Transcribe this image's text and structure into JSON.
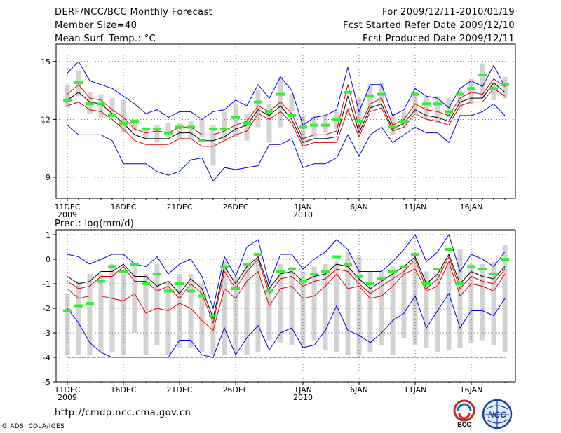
{
  "header": {
    "title": "DERF/NCC/BCC Monthly Forecast",
    "member_size": "Member Size=40",
    "variable": "Mean Surf. Temp.: °C",
    "period": "For 2009/12/11-2010/01/19",
    "fcst_started": "Fcst Started Refer Date 2009/12/10",
    "fcst_produced": "Fcst Produced Date 2009/12/11"
  },
  "footer": {
    "url": "http://cmdp.ncc.cma.gov.cn",
    "grads": "GrADS: COLA/IGES",
    "logo_bcc": "BCC",
    "logo_ncc": "NCC"
  },
  "colors": {
    "box": "#d3d3d3",
    "ensemble_mean": "#000000",
    "quartile": "#dd0000",
    "range": "#0000dd",
    "observation": "#33ee33",
    "floor": "#3333ff"
  },
  "chart_data": [
    {
      "type": "line",
      "title": "",
      "ylabel": "Mean Surf. Temp.: °C",
      "ylim": [
        8.2,
        15.9
      ],
      "yticks": [
        9,
        12,
        15
      ],
      "grid": "dotted",
      "x": [
        1,
        2,
        3,
        4,
        5,
        6,
        7,
        8,
        9,
        10,
        11,
        12,
        13,
        14,
        15,
        16,
        17,
        18,
        19,
        20,
        21,
        22,
        23,
        24,
        25,
        26,
        27,
        28,
        29,
        30,
        31,
        32,
        33,
        34,
        35,
        36,
        37,
        38,
        39,
        40
      ],
      "xticks": [
        {
          "day": 1,
          "label": "11DEC",
          "sub": "2009"
        },
        {
          "day": 6,
          "label": "16DEC",
          "sub": ""
        },
        {
          "day": 11,
          "label": "21DEC",
          "sub": ""
        },
        {
          "day": 16,
          "label": "26DEC",
          "sub": ""
        },
        {
          "day": 22,
          "label": "1JAN",
          "sub": "2010"
        },
        {
          "day": 27,
          "label": "6JAN",
          "sub": ""
        },
        {
          "day": 32,
          "label": "11JAN",
          "sub": ""
        },
        {
          "day": 37,
          "label": "16JAN",
          "sub": ""
        }
      ],
      "series": [
        {
          "name": "box_low",
          "values": [
            12.6,
            13.2,
            12.3,
            12.1,
            12.2,
            11.3,
            11.4,
            11.0,
            10.8,
            11.1,
            11.0,
            11.0,
            11.1,
            9.6,
            10.9,
            11.1,
            10.9,
            11.6,
            10.8,
            11.6,
            12.4,
            10.6,
            11.1,
            11.3,
            11.5,
            12.2,
            11.4,
            12.5,
            12.9,
            11.2,
            11.6,
            12.3,
            12.0,
            11.8,
            12.1,
            12.5,
            12.8,
            13.1,
            13.0,
            13.1
          ]
        },
        {
          "name": "box_high",
          "values": [
            13.8,
            14.5,
            13.4,
            13.3,
            13.1,
            13.0,
            12.0,
            11.6,
            11.7,
            11.8,
            11.8,
            11.9,
            12.0,
            11.7,
            12.4,
            12.8,
            12.3,
            13.5,
            12.8,
            14.2,
            13.3,
            12.2,
            12.2,
            12.3,
            12.4,
            12.6,
            13.1,
            13.8,
            13.9,
            12.3,
            12.4,
            13.4,
            13.2,
            13.2,
            13.1,
            13.5,
            14.1,
            14.9,
            13.9,
            14.2
          ]
        },
        {
          "name": "ensemble_mean",
          "values": [
            13.0,
            13.4,
            12.9,
            12.8,
            12.3,
            11.8,
            11.2,
            11.0,
            11.0,
            11.0,
            11.3,
            11.3,
            10.9,
            10.9,
            11.1,
            11.5,
            11.7,
            12.5,
            12.2,
            12.7,
            12.0,
            10.8,
            11.0,
            11.0,
            11.1,
            13.2,
            11.3,
            12.6,
            12.8,
            11.5,
            11.8,
            12.5,
            12.2,
            12.1,
            11.9,
            12.9,
            13.1,
            13.1,
            13.9,
            13.4
          ]
        },
        {
          "name": "q25",
          "values": [
            12.7,
            12.9,
            12.5,
            12.4,
            12.0,
            11.5,
            10.9,
            10.7,
            10.7,
            10.7,
            11.0,
            11.0,
            10.6,
            10.6,
            10.9,
            11.2,
            11.4,
            12.3,
            12.0,
            12.4,
            11.8,
            10.6,
            10.8,
            10.8,
            10.8,
            12.5,
            11.1,
            12.4,
            12.6,
            11.4,
            11.6,
            12.3,
            12.0,
            11.9,
            11.7,
            12.7,
            12.9,
            12.9,
            13.6,
            13.2
          ]
        },
        {
          "name": "q75",
          "values": [
            13.3,
            13.8,
            13.1,
            13.0,
            12.5,
            12.1,
            11.5,
            11.3,
            11.4,
            11.3,
            11.6,
            11.6,
            11.2,
            11.2,
            11.4,
            11.7,
            11.9,
            12.7,
            12.4,
            12.9,
            12.3,
            11.0,
            11.2,
            11.2,
            11.4,
            13.8,
            11.6,
            12.8,
            13.1,
            11.7,
            12.0,
            12.8,
            12.5,
            12.4,
            12.2,
            13.1,
            13.4,
            13.3,
            14.1,
            13.7
          ]
        },
        {
          "name": "max",
          "values": [
            14.4,
            15.0,
            14.0,
            13.8,
            13.6,
            13.2,
            12.8,
            12.3,
            12.5,
            12.1,
            12.4,
            12.4,
            12.0,
            12.4,
            12.5,
            13.0,
            12.7,
            13.8,
            13.1,
            14.2,
            13.5,
            11.7,
            12.1,
            12.2,
            12.5,
            14.7,
            12.4,
            13.8,
            13.8,
            12.2,
            12.5,
            13.6,
            13.2,
            13.1,
            12.6,
            13.6,
            14.0,
            13.7,
            14.8,
            13.7
          ]
        },
        {
          "name": "min",
          "values": [
            11.7,
            11.2,
            11.2,
            11.2,
            10.9,
            9.7,
            9.7,
            9.7,
            9.3,
            9.1,
            9.3,
            9.9,
            10.0,
            8.8,
            9.5,
            9.4,
            9.5,
            9.6,
            10.7,
            10.7,
            11.0,
            9.5,
            9.7,
            9.7,
            10.0,
            11.2,
            10.1,
            11.2,
            11.6,
            10.8,
            11.2,
            11.6,
            11.3,
            11.3,
            10.8,
            12.2,
            12.2,
            12.4,
            12.8,
            12.2
          ]
        },
        {
          "name": "observation",
          "values": [
            13.0,
            13.9,
            12.8,
            12.8,
            12.2,
            11.8,
            11.9,
            11.5,
            11.5,
            11.3,
            11.6,
            11.6,
            10.9,
            11.5,
            11.5,
            12.1,
            11.8,
            12.9,
            12.4,
            13.3,
            12.2,
            11.6,
            11.7,
            11.7,
            12.0,
            13.4,
            11.9,
            13.2,
            13.3,
            11.6,
            11.9,
            13.3,
            12.8,
            12.8,
            12.4,
            13.3,
            13.6,
            14.3,
            13.6,
            13.8
          ]
        }
      ]
    },
    {
      "type": "line",
      "title": "",
      "ylabel": "Prec.: log(mm/d)",
      "ylim": [
        -5,
        1.2
      ],
      "yticks": [
        1,
        0,
        -1,
        -2,
        -3,
        -4,
        -5
      ],
      "grid": "dotted",
      "floor": -4,
      "x": [
        1,
        2,
        3,
        4,
        5,
        6,
        7,
        8,
        9,
        10,
        11,
        12,
        13,
        14,
        15,
        16,
        17,
        18,
        19,
        20,
        21,
        22,
        23,
        24,
        25,
        26,
        27,
        28,
        29,
        30,
        31,
        32,
        33,
        34,
        35,
        36,
        37,
        38,
        39,
        40
      ],
      "xticks": [
        {
          "day": 1,
          "label": "11DEC",
          "sub": "2009"
        },
        {
          "day": 6,
          "label": "16DEC",
          "sub": ""
        },
        {
          "day": 11,
          "label": "21DEC",
          "sub": ""
        },
        {
          "day": 16,
          "label": "26DEC",
          "sub": ""
        },
        {
          "day": 22,
          "label": "1JAN",
          "sub": "2010"
        },
        {
          "day": 27,
          "label": "6JAN",
          "sub": ""
        },
        {
          "day": 32,
          "label": "11JAN",
          "sub": ""
        },
        {
          "day": 37,
          "label": "16JAN",
          "sub": ""
        }
      ],
      "series": [
        {
          "name": "box_low",
          "values": [
            -3.9,
            -3.9,
            -3.9,
            -3.8,
            -3.8,
            -3.9,
            -3.0,
            -3.9,
            -3.5,
            -3.9,
            -3.6,
            -3.6,
            -3.8,
            -3.9,
            -3.9,
            -3.8,
            -3.9,
            -3.8,
            -3.3,
            -3.4,
            -3.5,
            -3.6,
            -3.3,
            -3.7,
            -3.8,
            -3.9,
            -3.9,
            -3.8,
            -3.5,
            -3.9,
            -3.2,
            -3.5,
            -3.6,
            -3.8,
            -3.7,
            -3.6,
            -3.4,
            -3.3,
            -3.5,
            -3.8
          ]
        },
        {
          "name": "box_high",
          "values": [
            -1.4,
            -0.9,
            -0.6,
            -0.6,
            -0.2,
            -0.6,
            -0.3,
            -0.6,
            -0.2,
            -0.9,
            -0.6,
            -0.6,
            -1.0,
            -2.2,
            -0.1,
            -0.7,
            -0.2,
            0.0,
            -0.8,
            -0.2,
            -0.3,
            -0.5,
            -0.3,
            -0.2,
            -0.1,
            0.3,
            0.1,
            -0.5,
            -0.5,
            -0.3,
            -0.4,
            -0.1,
            -0.5,
            -0.6,
            -0.2,
            0.4,
            -0.2,
            -0.2,
            -0.1,
            0.6
          ]
        },
        {
          "name": "ensemble_mean",
          "values": [
            -0.7,
            -1.0,
            -0.9,
            -0.5,
            -0.5,
            -0.2,
            -0.7,
            -0.7,
            -1.1,
            -0.9,
            -1.4,
            -0.8,
            -1.2,
            -2.4,
            -0.3,
            -1.0,
            -0.3,
            0.1,
            -1.2,
            -0.6,
            -0.5,
            -0.9,
            -0.7,
            -0.6,
            -0.2,
            -0.3,
            -0.8,
            -1.2,
            -0.9,
            -0.6,
            -0.3,
            0.1,
            -1.0,
            -0.6,
            0.2,
            -1.0,
            -0.5,
            -0.7,
            -0.8,
            -0.3
          ]
        },
        {
          "name": "q75",
          "values": [
            -0.9,
            -1.2,
            -1.1,
            -0.7,
            -0.7,
            -0.3,
            -0.9,
            -0.9,
            -1.3,
            -1.1,
            -1.6,
            -1.0,
            -1.4,
            -2.6,
            -0.5,
            -1.2,
            -0.5,
            0.0,
            -1.4,
            -0.8,
            -0.7,
            -1.1,
            -0.9,
            -0.8,
            -0.4,
            -0.5,
            -1.0,
            -1.4,
            -1.1,
            -0.8,
            -0.5,
            0.0,
            -1.2,
            -0.8,
            0.1,
            -1.2,
            -0.7,
            -0.9,
            -1.0,
            -0.4
          ]
        },
        {
          "name": "q25",
          "values": [
            -1.2,
            -1.6,
            -1.5,
            -1.5,
            -1.6,
            -1.7,
            -1.4,
            -2.2,
            -2.0,
            -2.1,
            -1.8,
            -2.0,
            -2.5,
            -2.9,
            -1.2,
            -1.6,
            -0.9,
            -0.5,
            -1.9,
            -1.2,
            -1.1,
            -1.6,
            -1.5,
            -1.1,
            -0.6,
            -1.2,
            -1.1,
            -1.6,
            -1.5,
            -1.1,
            -0.6,
            -0.4,
            -1.3,
            -1.1,
            -0.1,
            -1.5,
            -1.0,
            -1.1,
            -1.3,
            -0.6
          ]
        },
        {
          "name": "min",
          "values": [
            -2.0,
            -2.6,
            -3.4,
            -3.8,
            -4.0,
            -4.0,
            -4.0,
            -4.0,
            -4.0,
            -4.0,
            -3.3,
            -3.3,
            -3.9,
            -4.0,
            -2.8,
            -3.9,
            -3.2,
            -2.7,
            -3.7,
            -3.0,
            -2.8,
            -3.6,
            -3.5,
            -2.9,
            -1.9,
            -2.9,
            -3.1,
            -3.4,
            -3.0,
            -2.5,
            -2.2,
            -1.5,
            -2.8,
            -2.1,
            -1.4,
            -2.8,
            -2.1,
            -2.1,
            -2.3,
            -1.6
          ]
        },
        {
          "name": "max",
          "values": [
            0.2,
            0.1,
            -0.2,
            0.0,
            0.2,
            0.2,
            -0.2,
            -0.3,
            0.1,
            -0.6,
            -0.2,
            0.0,
            -0.7,
            -2.0,
            0.1,
            -0.7,
            0.5,
            0.8,
            -1.0,
            0.2,
            0.2,
            -0.4,
            0.0,
            0.3,
            0.8,
            0.4,
            -0.5,
            -0.5,
            -0.5,
            -0.1,
            0.4,
            1.0,
            -0.1,
            0.3,
            1.0,
            -0.5,
            0.2,
            0.0,
            -0.3,
            0.3
          ]
        },
        {
          "name": "observation",
          "values": [
            -2.1,
            -1.9,
            -1.8,
            -0.9,
            -0.3,
            -0.5,
            -0.2,
            -1.0,
            -0.6,
            -1.3,
            -1.0,
            -1.3,
            -1.5,
            -2.3,
            -0.3,
            -1.2,
            -0.2,
            0.2,
            -1.3,
            -0.5,
            -0.4,
            -0.9,
            -0.6,
            -0.5,
            0.1,
            -0.2,
            -0.7,
            -1.0,
            -0.8,
            -0.5,
            -0.3,
            0.2,
            -1.0,
            -0.4,
            0.4,
            -1.0,
            -0.3,
            -0.4,
            -0.6,
            0.0
          ]
        }
      ]
    }
  ]
}
